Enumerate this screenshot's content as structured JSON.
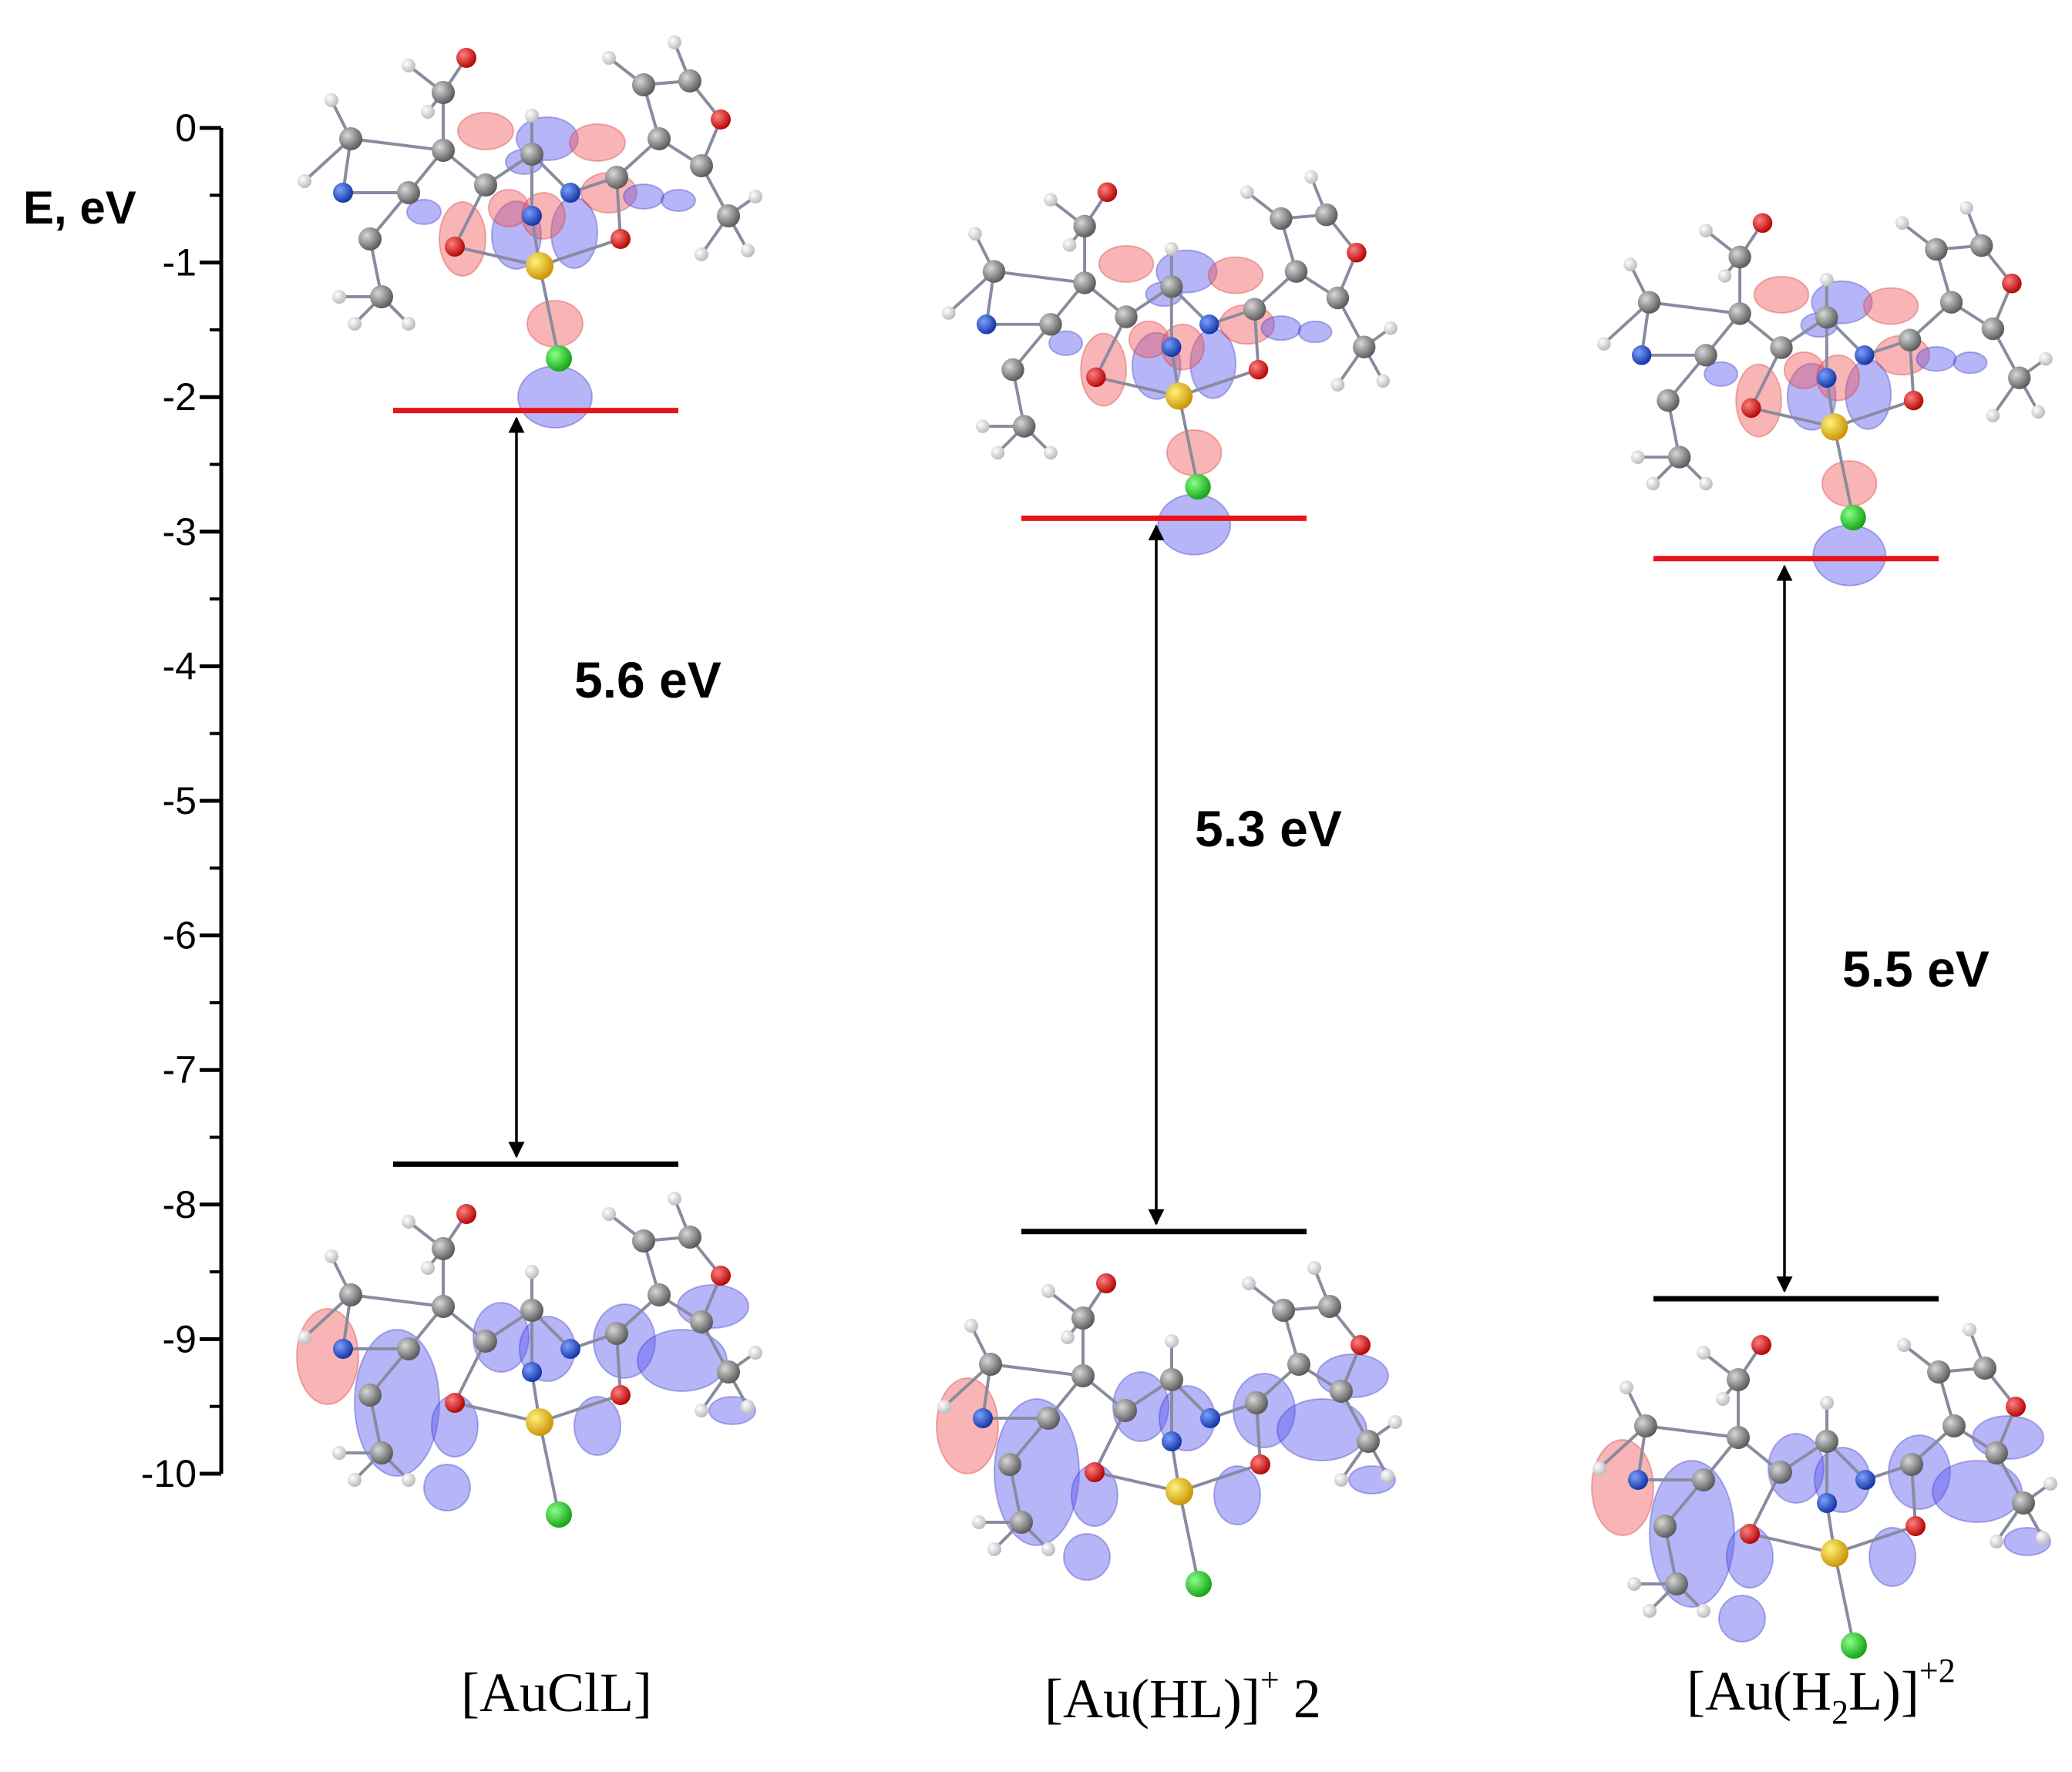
{
  "axis": {
    "title": "E, eV",
    "min": -10,
    "max": 0,
    "major_step": 1,
    "minor_step": 0.5,
    "tick_labels": [
      "0",
      "-1",
      "-2",
      "-3",
      "-4",
      "-5",
      "-6",
      "-7",
      "-8",
      "-9",
      "-10"
    ]
  },
  "colors": {
    "lumo_line": "#e8141b",
    "homo_line": "#000000",
    "lobe_red": "#f25a5a",
    "lobe_blue": "#5a5af0",
    "atom_C": "#7a7a7a",
    "atom_H": "#f2f2f2",
    "atom_N": "#2050d8",
    "atom_O": "#e01010",
    "atom_Au": "#f2c200",
    "atom_Cl": "#18d020"
  },
  "chart_data": {
    "type": "energy-level-diagram",
    "y_unit": "eV",
    "ylim": [
      -10,
      0
    ],
    "complexes": [
      {
        "name": "[AuClL]",
        "label_main": "[AuClL]",
        "lumo": -2.1,
        "homo": -7.7,
        "gap": 5.6,
        "gap_label": "5.6 eV"
      },
      {
        "name": "[Au(HL)]+ 2",
        "label_main": "[Au(HL)]",
        "label_sup": "+",
        "label_after": " 2",
        "lumo": -2.9,
        "homo": -8.2,
        "gap": 5.3,
        "gap_label": "5.3 eV"
      },
      {
        "name": "[Au(H2L)]+2",
        "label_main": "[Au(H",
        "label_sub": "2",
        "label_after": "L)]",
        "label_sup": "+2",
        "lumo": -3.2,
        "homo": -8.7,
        "gap": 5.5,
        "gap_label": "5.5 eV"
      }
    ]
  }
}
